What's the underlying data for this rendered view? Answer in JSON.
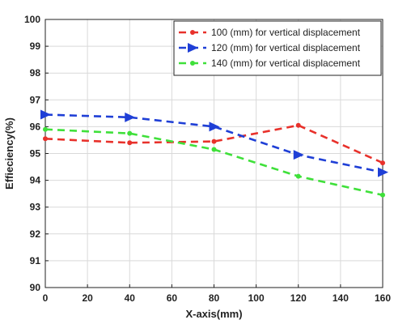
{
  "chart_data": {
    "type": "line",
    "xlabel": "X-axis(mm)",
    "ylabel": "Effieciency(%)",
    "x": [
      0,
      40,
      80,
      120,
      160
    ],
    "xlim": [
      0,
      160
    ],
    "ylim": [
      90,
      100
    ],
    "xticks": [
      "0",
      "20",
      "40",
      "60",
      "80",
      "100",
      "120",
      "140",
      "160"
    ],
    "yticks": [
      "90",
      "91",
      "92",
      "93",
      "94",
      "95",
      "96",
      "97",
      "98",
      "99",
      "100"
    ],
    "grid": true,
    "legend_position": "top-right",
    "series": [
      {
        "name": "100 (mm) for vertical displacement",
        "color": "#e8312b",
        "marker": "dot",
        "values": [
          95.55,
          95.4,
          95.45,
          96.05,
          94.65
        ]
      },
      {
        "name": "120 (mm) for vertical displacement",
        "color": "#1f3fd6",
        "marker": "triangle-right",
        "values": [
          96.45,
          96.35,
          96.0,
          94.95,
          94.3
        ]
      },
      {
        "name": "140 (mm) for vertical displacement",
        "color": "#3fe03a",
        "marker": "dot",
        "values": [
          95.9,
          95.75,
          95.15,
          94.15,
          93.45
        ]
      }
    ]
  }
}
